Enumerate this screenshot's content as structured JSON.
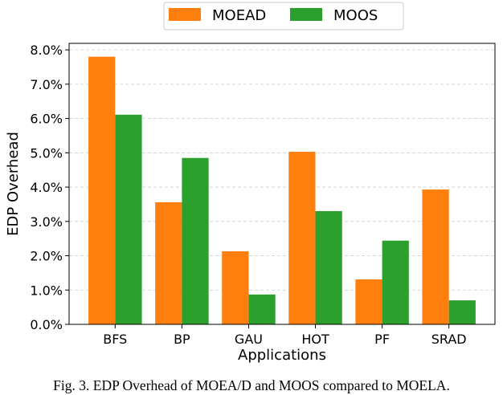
{
  "chart_data": {
    "type": "bar",
    "title": "",
    "xlabel": "Applications",
    "ylabel": "EDP Overhead",
    "categories": [
      "BFS",
      "BP",
      "GAU",
      "HOT",
      "PF",
      "SRAD"
    ],
    "series": [
      {
        "name": "MOEAD",
        "color": "#ff7f0e",
        "values": [
          7.8,
          3.56,
          2.13,
          5.03,
          1.31,
          3.93
        ]
      },
      {
        "name": "MOOS",
        "color": "#2ca02c",
        "values": [
          6.11,
          4.85,
          0.87,
          3.3,
          2.44,
          0.7
        ]
      }
    ],
    "yticks": [
      "0.0%",
      "1.0%",
      "2.0%",
      "3.0%",
      "4.0%",
      "5.0%",
      "6.0%",
      "7.0%",
      "8.0%"
    ],
    "ylim": [
      0,
      8.19
    ],
    "grid": "y dashed",
    "legend_position": "top-center"
  },
  "caption": "Fig. 3. EDP Overhead of MOEA/D and MOOS compared to MOELA."
}
